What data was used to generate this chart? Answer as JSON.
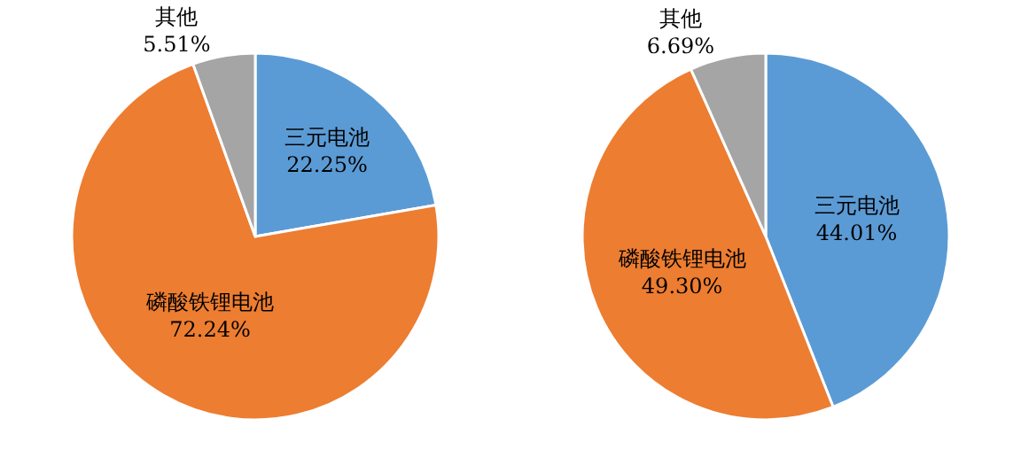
{
  "chart_data": [
    {
      "type": "pie",
      "categories": [
        "三元电池",
        "磷酸铁锂电池",
        "其他"
      ],
      "values": [
        22.25,
        72.24,
        5.51
      ],
      "value_labels": [
        "22.25%",
        "72.24%",
        "5.51%"
      ],
      "colors": [
        "#5b9bd5",
        "#ed7d31",
        "#a5a5a5"
      ],
      "legend": false
    },
    {
      "type": "pie",
      "categories": [
        "三元电池",
        "磷酸铁锂电池",
        "其他"
      ],
      "values": [
        44.01,
        49.3,
        6.69
      ],
      "value_labels": [
        "44.01%",
        "49.30%",
        "6.69%"
      ],
      "colors": [
        "#5b9bd5",
        "#ed7d31",
        "#a5a5a5"
      ],
      "legend": false
    }
  ]
}
